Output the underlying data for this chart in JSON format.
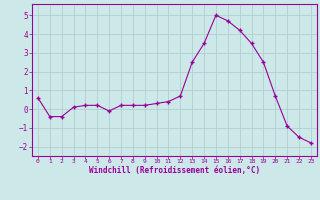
{
  "x": [
    0,
    1,
    2,
    3,
    4,
    5,
    6,
    7,
    8,
    9,
    10,
    11,
    12,
    13,
    14,
    15,
    16,
    17,
    18,
    19,
    20,
    21,
    22,
    23
  ],
  "y": [
    0.6,
    -0.4,
    -0.4,
    0.1,
    0.2,
    0.2,
    -0.1,
    0.2,
    0.2,
    0.2,
    0.3,
    0.4,
    0.7,
    2.5,
    3.5,
    5.0,
    4.7,
    4.2,
    3.5,
    2.5,
    0.7,
    -0.9,
    -1.5,
    -1.8
  ],
  "line_color": "#990099",
  "marker": "+",
  "marker_size": 3.5,
  "line_width": 0.8,
  "background_color": "#cce8e8",
  "grid_color": "#aacccc",
  "xlabel": "Windchill (Refroidissement éolien,°C)",
  "xlabel_color": "#990099",
  "tick_color": "#990099",
  "ylim": [
    -2.5,
    5.6
  ],
  "xlim": [
    -0.5,
    23.5
  ],
  "yticks": [
    -2,
    -1,
    0,
    1,
    2,
    3,
    4,
    5
  ],
  "xticks": [
    0,
    1,
    2,
    3,
    4,
    5,
    6,
    7,
    8,
    9,
    10,
    11,
    12,
    13,
    14,
    15,
    16,
    17,
    18,
    19,
    20,
    21,
    22,
    23
  ]
}
